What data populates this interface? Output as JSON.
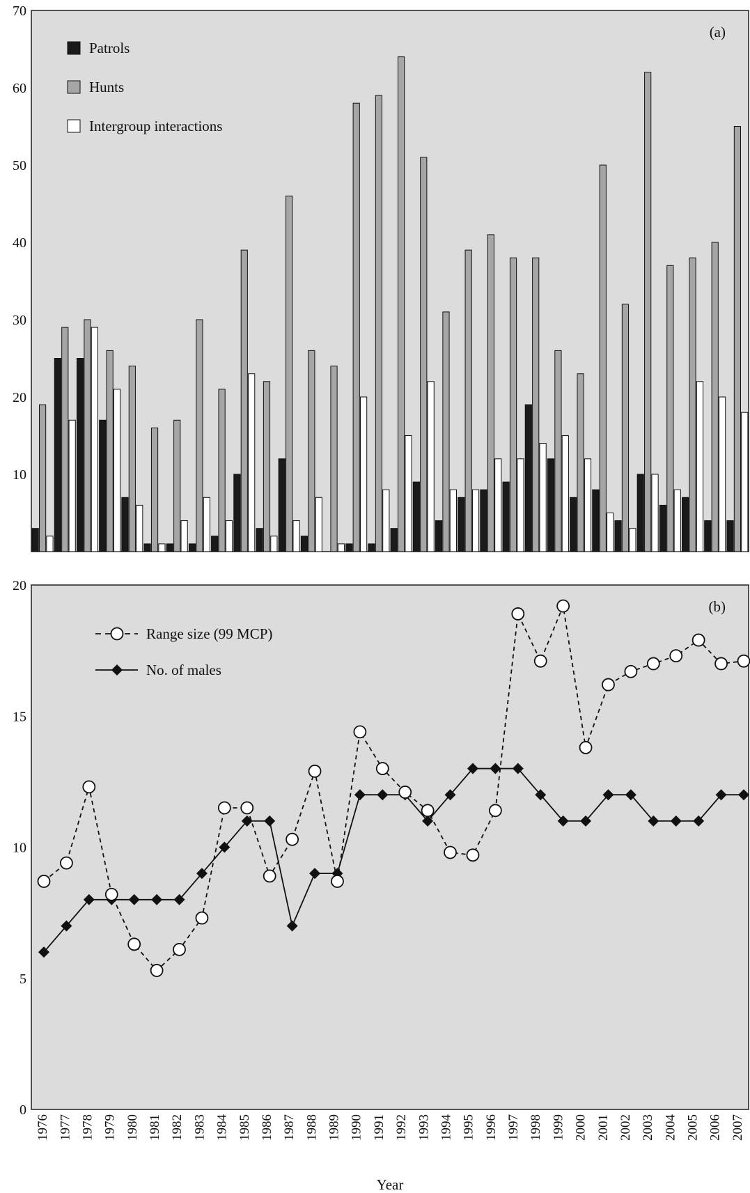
{
  "chart_data": [
    {
      "type": "bar",
      "panel_label": "(a)",
      "categories": [
        "1976",
        "1977",
        "1978",
        "1979",
        "1980",
        "1981",
        "1982",
        "1983",
        "1984",
        "1985",
        "1986",
        "1987",
        "1988",
        "1989",
        "1990",
        "1991",
        "1992",
        "1993",
        "1994",
        "1995",
        "1996",
        "1997",
        "1998",
        "1999",
        "2000",
        "2001",
        "2002",
        "2003",
        "2004",
        "2005",
        "2006",
        "2007"
      ],
      "series": [
        {
          "name": "Patrols",
          "color": "#1a1a1a",
          "values": [
            3,
            25,
            25,
            17,
            7,
            1,
            1,
            1,
            2,
            10,
            3,
            12,
            2,
            0,
            1,
            1,
            3,
            9,
            4,
            7,
            8,
            9,
            19,
            12,
            7,
            8,
            4,
            10,
            6,
            7,
            4,
            4
          ]
        },
        {
          "name": "Hunts",
          "color": "#a6a6a6",
          "values": [
            19,
            29,
            30,
            26,
            24,
            16,
            17,
            30,
            21,
            39,
            22,
            46,
            26,
            24,
            58,
            59,
            64,
            51,
            31,
            39,
            41,
            38,
            38,
            26,
            23,
            50,
            32,
            62,
            37,
            38,
            40,
            55
          ]
        },
        {
          "name": "Intergroup interactions",
          "color": "#ffffff",
          "values": [
            2,
            17,
            29,
            21,
            6,
            1,
            4,
            7,
            4,
            23,
            2,
            4,
            7,
            1,
            20,
            8,
            15,
            22,
            8,
            8,
            12,
            12,
            14,
            15,
            12,
            5,
            3,
            10,
            8,
            22,
            20,
            18
          ]
        }
      ],
      "ylim": [
        0,
        70
      ],
      "yticks": [
        10,
        20,
        30,
        40,
        50,
        60,
        70
      ],
      "grid": false,
      "legend_position": "top-left",
      "background": "#dcdcdc"
    },
    {
      "type": "line",
      "panel_label": "(b)",
      "x": [
        "1976",
        "1977",
        "1978",
        "1979",
        "1980",
        "1981",
        "1982",
        "1983",
        "1984",
        "1985",
        "1986",
        "1987",
        "1988",
        "1989",
        "1990",
        "1991",
        "1992",
        "1993",
        "1994",
        "1995",
        "1996",
        "1997",
        "1998",
        "1999",
        "2000",
        "2001",
        "2002",
        "2003",
        "2004",
        "2005",
        "2006",
        "2007"
      ],
      "series": [
        {
          "name": "Range size (99 MCP)",
          "marker": "open-circle",
          "line": "dashed",
          "values": [
            8.7,
            9.4,
            12.3,
            8.2,
            6.3,
            5.3,
            6.1,
            7.3,
            11.5,
            11.5,
            8.9,
            10.3,
            12.9,
            8.7,
            14.4,
            13.0,
            12.1,
            11.4,
            9.8,
            9.7,
            11.4,
            18.9,
            17.1,
            19.2,
            13.8,
            16.2,
            16.7,
            17.0,
            17.3,
            17.9,
            17.0,
            17.1
          ]
        },
        {
          "name": "No. of males",
          "marker": "filled-diamond",
          "line": "solid",
          "values": [
            6,
            7,
            8,
            8,
            8,
            8,
            8,
            9,
            10,
            11,
            11,
            7,
            9,
            9,
            12,
            12,
            12,
            11,
            12,
            13,
            13,
            13,
            12,
            11,
            11,
            12,
            12,
            11,
            11,
            11,
            12,
            12
          ]
        }
      ],
      "ylim": [
        0,
        20
      ],
      "yticks": [
        0,
        5,
        10,
        15,
        20
      ],
      "xlabel": "Year",
      "grid": false,
      "legend_position": "top-left",
      "background": "#dcdcdc"
    }
  ]
}
